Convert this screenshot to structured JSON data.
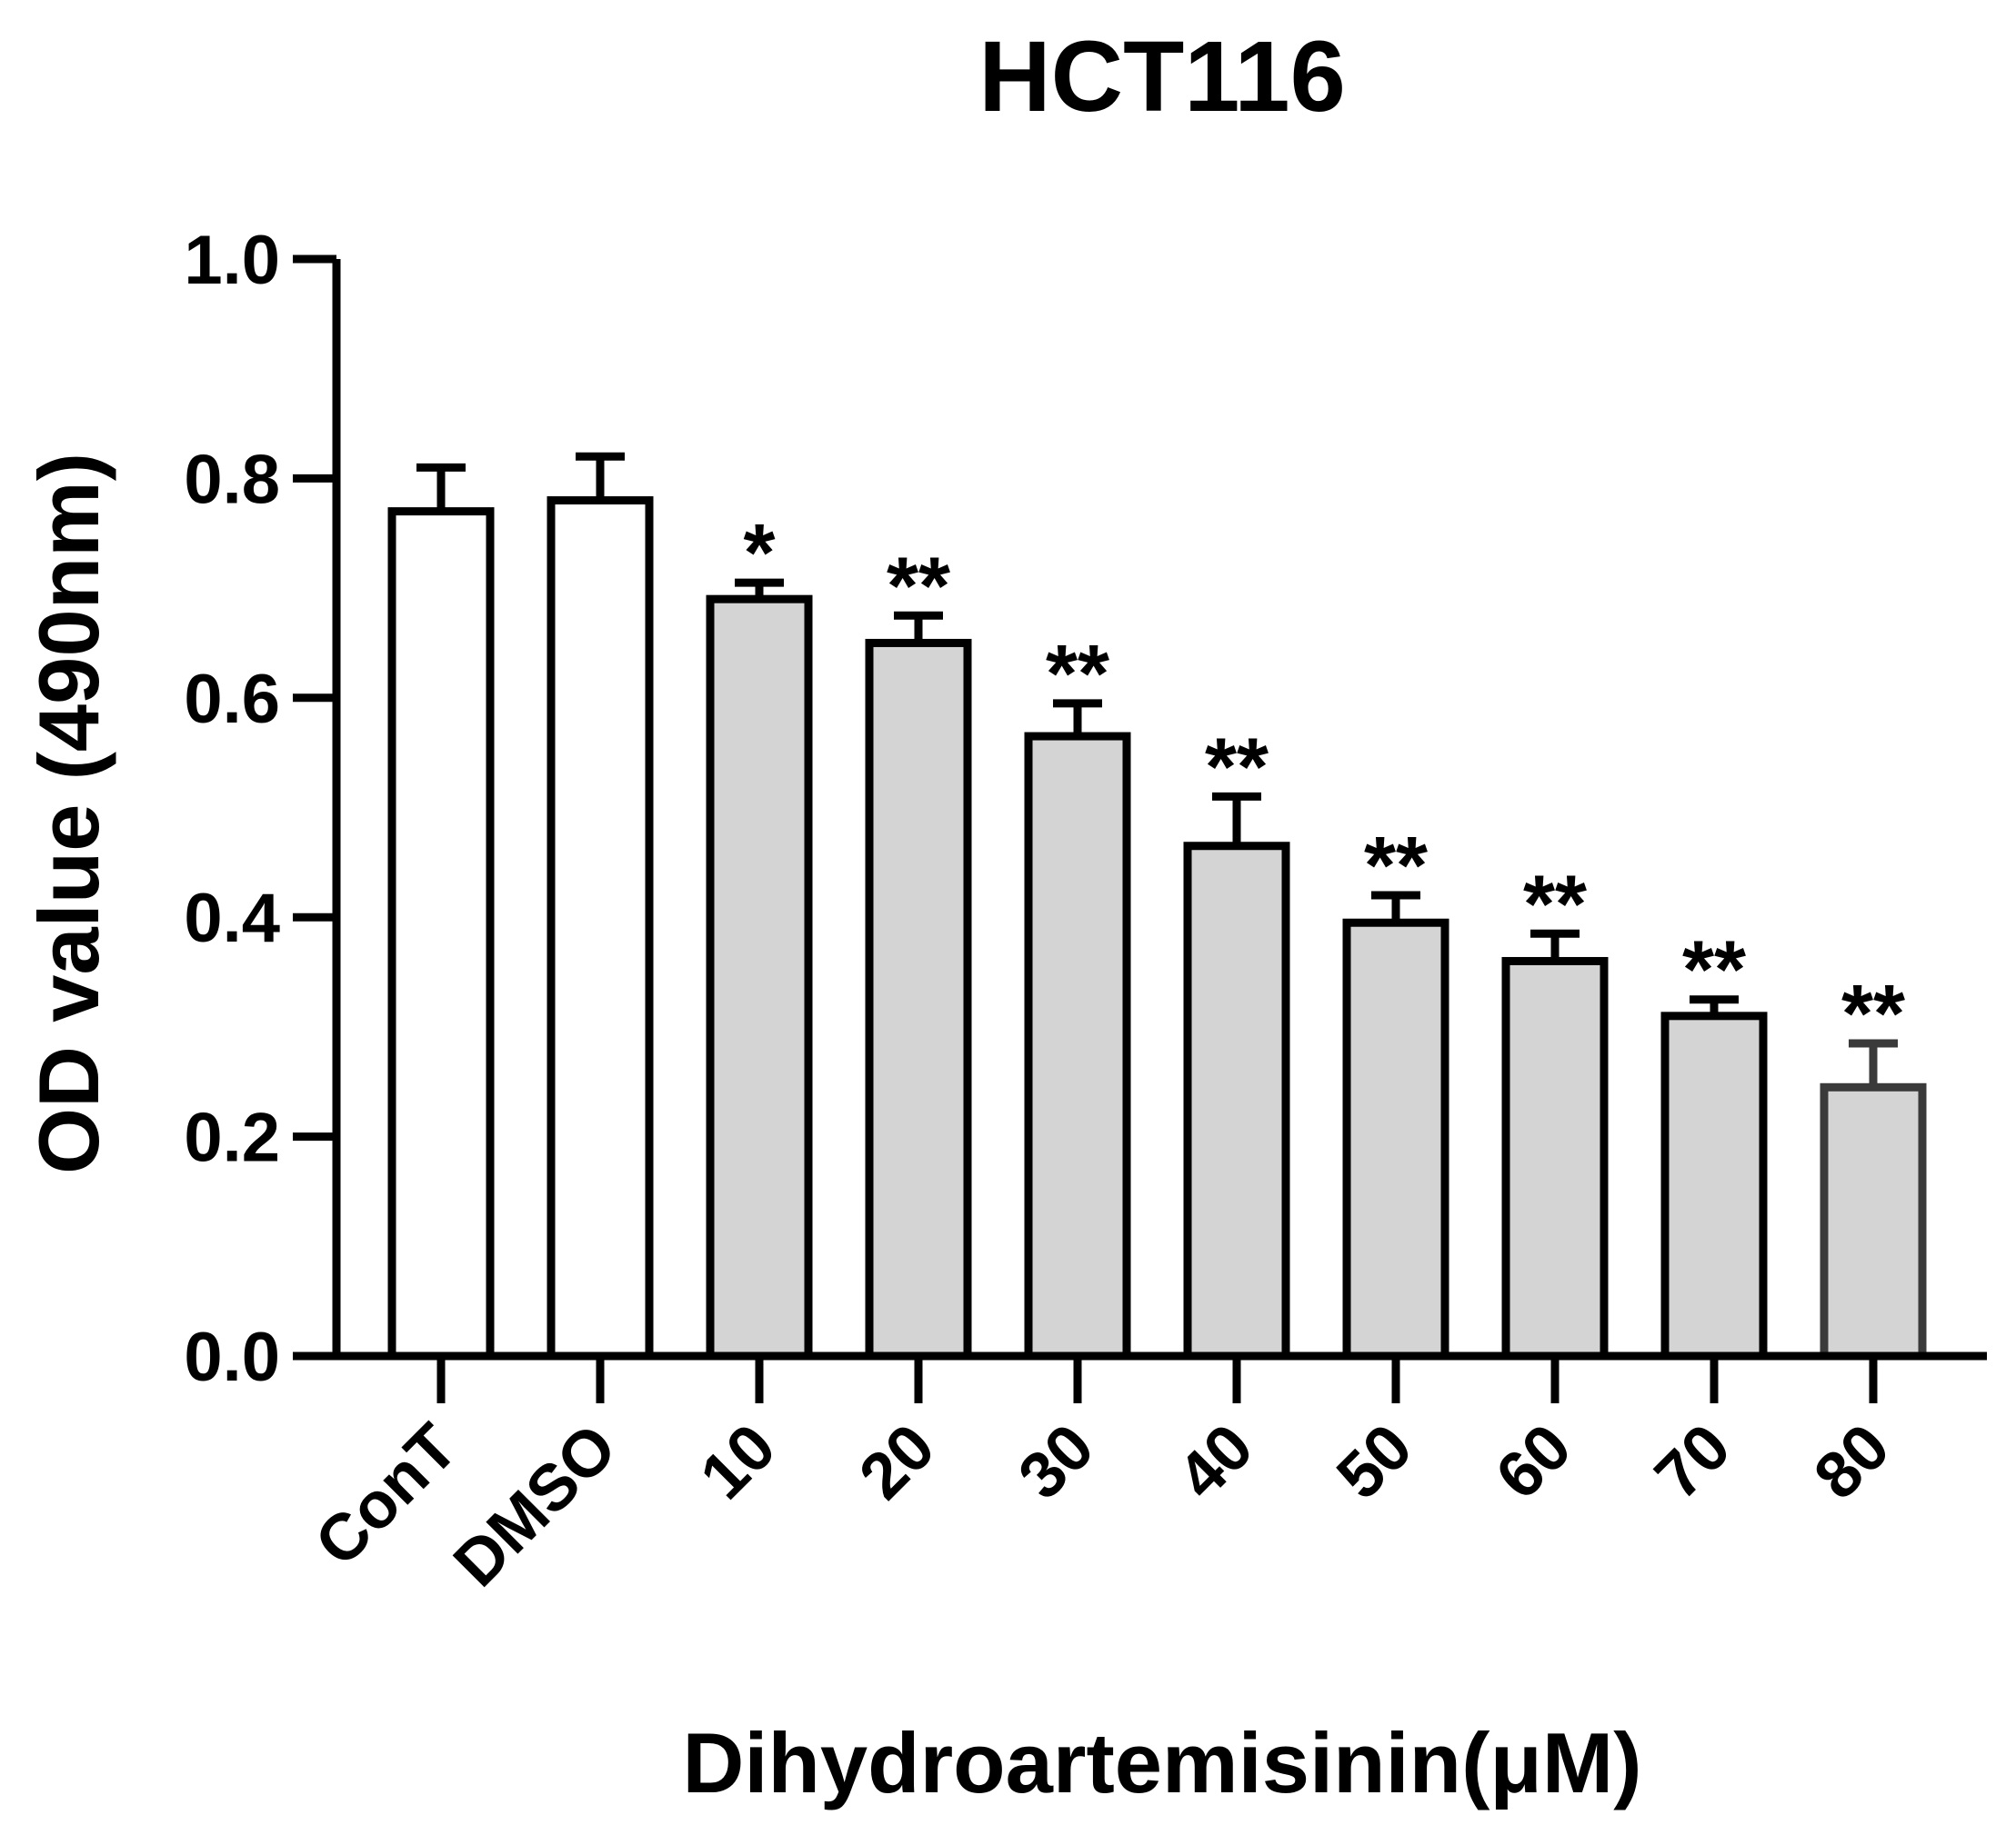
{
  "chart_data": {
    "type": "bar",
    "title": "HCT116",
    "xlabel": "Dihydroartemisinin(μM)",
    "ylabel": "OD value (490nm)",
    "ylim": [
      0,
      1.0
    ],
    "yticks": [
      "0.0",
      "0.2",
      "0.4",
      "0.6",
      "0.8",
      "1.0"
    ],
    "grid": false,
    "categories": [
      "ConT",
      "DMSO",
      "10",
      "20",
      "30",
      "40",
      "50",
      "60",
      "70",
      "80"
    ],
    "values": [
      0.77,
      0.78,
      0.69,
      0.65,
      0.565,
      0.465,
      0.395,
      0.36,
      0.31,
      0.245
    ],
    "errors": [
      0.04,
      0.04,
      0.015,
      0.025,
      0.03,
      0.045,
      0.025,
      0.025,
      0.015,
      0.04
    ],
    "significance": [
      "",
      "",
      "*",
      "**",
      "**",
      "**",
      "**",
      "**",
      "**",
      "**"
    ],
    "colors": {
      "control_fill": "#ffffff",
      "treatment_fill": "#d4d4d4",
      "outline": "#000000",
      "last_outline": "#3a3a3a"
    }
  }
}
